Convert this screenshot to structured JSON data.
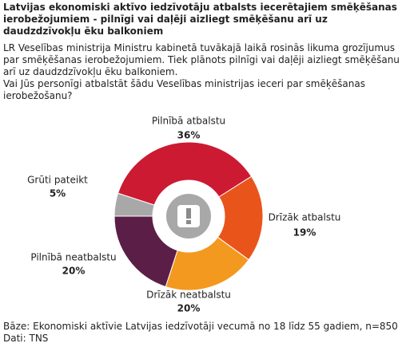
{
  "chart_data": {
    "type": "donut",
    "title": "Latvijas ekonomiski aktīvo iedzīvotāju atbalsts iecerētajiem smēķēšanas ierobežojumiem - pilnīgi vai daļēji aizliegt smēķēšanu arī uz daudzdzīvokļu ēku balkoniem",
    "intro": "LR Veselības ministrija Ministru kabinetā tuvākajā laikā rosinās likuma grozījumus par smēķēšanas ierobežojumiem. Tiek plānots pilnīgi vai daļēji aizliegt smēķēšanu arī uz daudzdzīvokļu ēku balkoniem.",
    "question": "Vai Jūs personīgi atbalstāt šādu Veselības ministrijas ieceri par smēķēšanas ierobežošanu?",
    "categories": [
      "Pilnībā atbalstu",
      "Drīzāk atbalstu",
      "Drīzāk neatbalstu",
      "Pilnībā neatbalstu",
      "Grūti pateikt"
    ],
    "values": [
      36,
      19,
      20,
      20,
      5
    ],
    "value_labels": [
      "36%",
      "19%",
      "20%",
      "20%",
      "5%"
    ],
    "colors": [
      "#cc1a33",
      "#e9541b",
      "#f3991f",
      "#5b1f47",
      "#a8a8a8"
    ],
    "base": "Bāze: Ekonomiski aktīvie Latvijas iedzīvotāji vecumā no 18 līdz 55 gadiem, n=850",
    "source": "Dati: TNS"
  }
}
